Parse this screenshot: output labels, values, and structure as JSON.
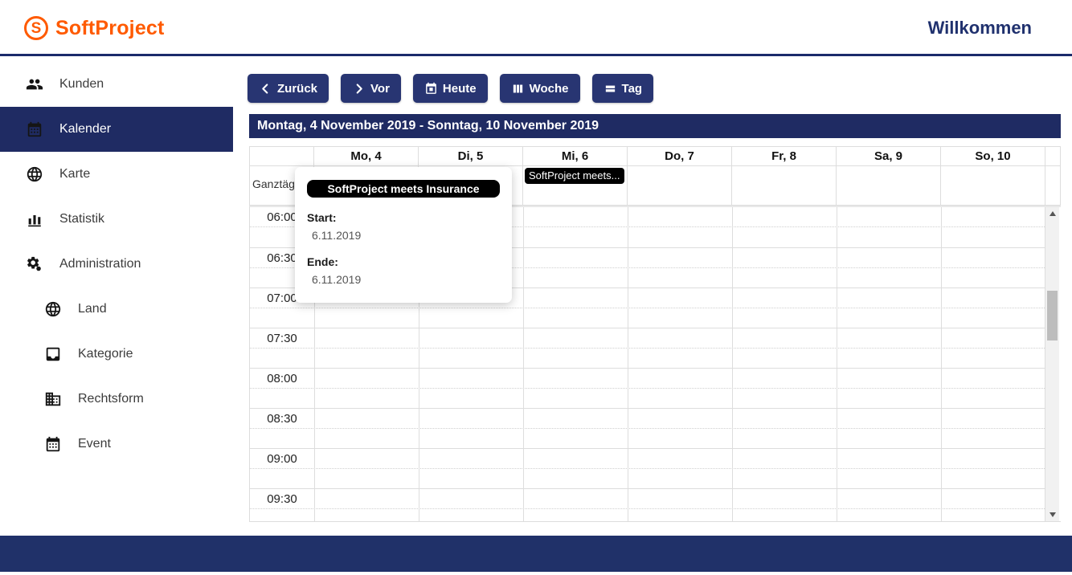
{
  "header": {
    "brand": "SoftProject",
    "logo_letter": "S",
    "welcome": "Willkommen"
  },
  "sidebar": {
    "items": [
      {
        "name": "kunden",
        "label": "Kunden",
        "icon": "people-icon",
        "active": false,
        "indent": false
      },
      {
        "name": "kalender",
        "label": "Kalender",
        "icon": "calendar-icon",
        "active": true,
        "indent": false
      },
      {
        "name": "karte",
        "label": "Karte",
        "icon": "globe-icon",
        "active": false,
        "indent": false
      },
      {
        "name": "statistik",
        "label": "Statistik",
        "icon": "bar-chart-icon",
        "active": false,
        "indent": false
      },
      {
        "name": "administration",
        "label": "Administration",
        "icon": "gears-icon",
        "active": false,
        "indent": false
      },
      {
        "name": "land",
        "label": "Land",
        "icon": "globe-icon",
        "active": false,
        "indent": true
      },
      {
        "name": "kategorie",
        "label": "Kategorie",
        "icon": "tray-icon",
        "active": false,
        "indent": true
      },
      {
        "name": "rechtsform",
        "label": "Rechtsform",
        "icon": "building-icon",
        "active": false,
        "indent": true
      },
      {
        "name": "event",
        "label": "Event",
        "icon": "calendar-icon",
        "active": false,
        "indent": true
      }
    ]
  },
  "toolbar": {
    "back_label": "Zurück",
    "forward_label": "Vor",
    "today_label": "Heute",
    "week_label": "Woche",
    "day_label": "Tag"
  },
  "calendar": {
    "title": "Montag, 4 November 2019 - Sonntag, 10 November 2019",
    "allday_label": "Ganztägig",
    "day_headers": [
      "Mo, 4",
      "Di, 5",
      "Mi, 6",
      "Do, 7",
      "Fr, 8",
      "Sa, 9",
      "So, 10"
    ],
    "time_labels": [
      "06:00",
      "06:30",
      "07:00",
      "07:30",
      "08:00",
      "08:30",
      "09:00",
      "09:30"
    ],
    "event": {
      "label": "SoftProject meets...",
      "day": "Mi, 6",
      "day_index": 2
    }
  },
  "popup": {
    "title": "SoftProject meets Insurance",
    "start_label": "Start:",
    "start_value": "6.11.2019",
    "end_label": "Ende:",
    "end_value": "6.11.2019"
  },
  "colors": {
    "navy": "#1f2b63",
    "button_navy": "#283572",
    "footer_navy": "#203169",
    "brand_orange": "#ff5a00",
    "event_black": "#000000",
    "grid_border": "#dddddd"
  }
}
